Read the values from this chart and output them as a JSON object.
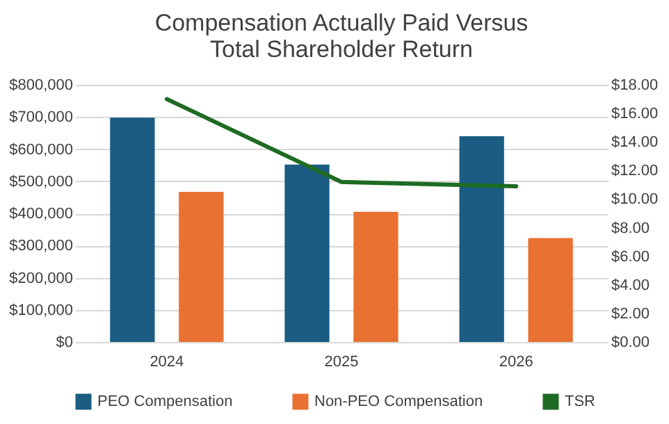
{
  "chart_data": {
    "type": "bar",
    "title": "Compensation Actually Paid Versus\nTotal Shareholder Return",
    "categories": [
      "2024",
      "2025",
      "2026"
    ],
    "series": [
      {
        "name": "PEO Compensation",
        "color": "#1b5c82",
        "values": [
          698000,
          552000,
          640000
        ]
      },
      {
        "name": "Non-PEO Compensation",
        "color": "#e97132",
        "values": [
          467000,
          405000,
          323000
        ]
      },
      {
        "name": "TSR",
        "type": "line",
        "axis": "y2",
        "color": "#1e6b23",
        "line_style": "solid",
        "values": [
          17.0,
          11.2,
          10.9
        ]
      }
    ],
    "ylim": [
      0,
      800000
    ],
    "yticks": [
      {
        "value": 0,
        "label": "$0"
      },
      {
        "value": 100000,
        "label": "$100,000"
      },
      {
        "value": 200000,
        "label": "$200,000"
      },
      {
        "value": 300000,
        "label": "$300,000"
      },
      {
        "value": 400000,
        "label": "$400,000"
      },
      {
        "value": 500000,
        "label": "$500,000"
      },
      {
        "value": 600000,
        "label": "$600,000"
      },
      {
        "value": 700000,
        "label": "$700,000"
      },
      {
        "value": 800000,
        "label": "$800,000"
      }
    ],
    "y2lim": [
      0,
      18
    ],
    "y2ticks": [
      {
        "value": 0,
        "label": "$0.00"
      },
      {
        "value": 2,
        "label": "$2.00"
      },
      {
        "value": 4,
        "label": "$4.00"
      },
      {
        "value": 6,
        "label": "$6.00"
      },
      {
        "value": 8,
        "label": "$8.00"
      },
      {
        "value": 10,
        "label": "$10.00"
      },
      {
        "value": 12,
        "label": "$12.00"
      },
      {
        "value": 14,
        "label": "$14.00"
      },
      {
        "value": 16,
        "label": "$16.00"
      },
      {
        "value": 18,
        "label": "$18.00"
      }
    ],
    "grid": "y",
    "legend": "bottom",
    "marker": "none"
  }
}
